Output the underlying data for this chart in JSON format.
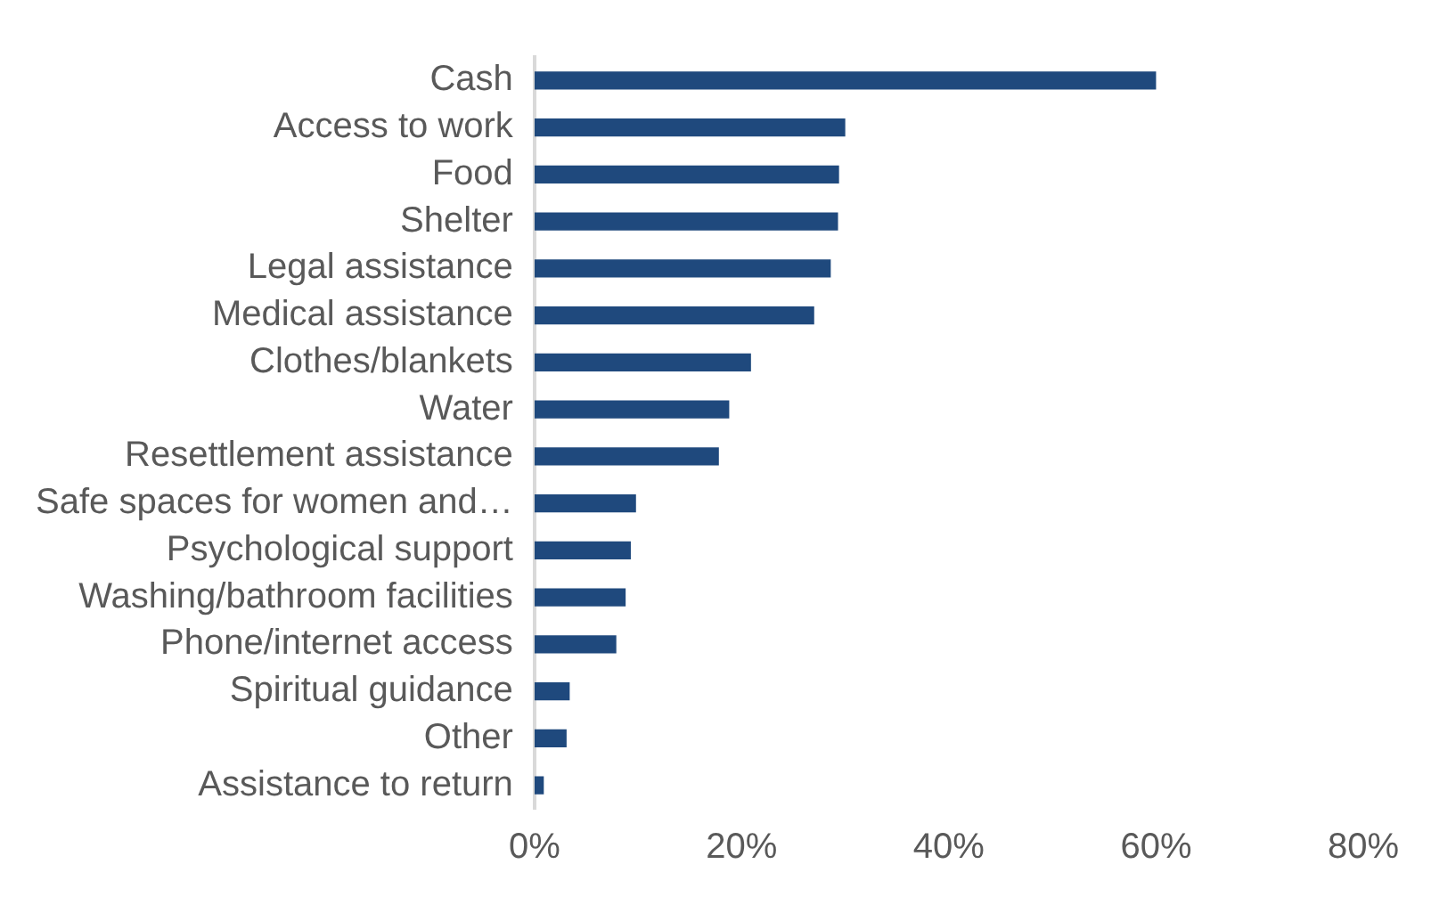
{
  "chart_data": {
    "type": "bar",
    "orientation": "horizontal",
    "categories": [
      "Cash",
      "Access to work",
      "Food",
      "Shelter",
      "Legal assistance",
      "Medical assistance",
      "Clothes/blankets",
      "Water",
      "Resettlement assistance",
      "Safe spaces for women and…",
      "Psychological support",
      "Washing/bathroom facilities",
      "Phone/internet access",
      "Spiritual guidance",
      "Other",
      "Assistance to return"
    ],
    "values": [
      60,
      30,
      29.4,
      29.3,
      28.6,
      27,
      20.9,
      18.8,
      17.8,
      9.8,
      9.3,
      8.8,
      7.9,
      3.4,
      3.1,
      0.9
    ],
    "color": "#1f497d",
    "xlim": [
      0,
      80
    ],
    "xticks": [
      {
        "value": 0,
        "label": "0%"
      },
      {
        "value": 20,
        "label": "20%"
      },
      {
        "value": 40,
        "label": "40%"
      },
      {
        "value": 60,
        "label": "60%"
      },
      {
        "value": 80,
        "label": "80%"
      }
    ],
    "grid": false,
    "legend": false
  }
}
